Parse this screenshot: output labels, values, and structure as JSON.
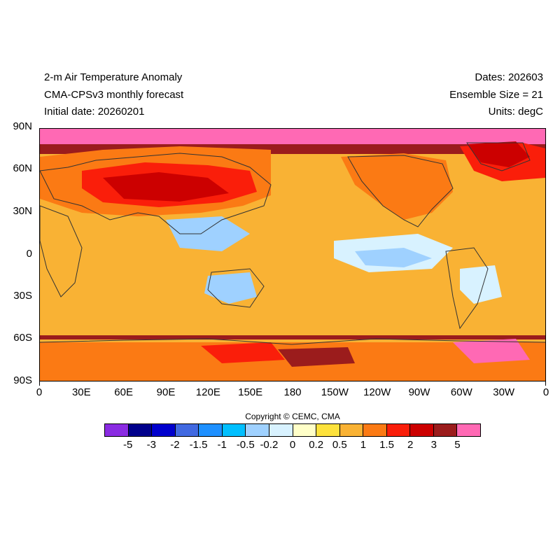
{
  "header": {
    "title": "2-m Air Temperature Anomaly",
    "model": "CMA-CPSv3 monthly forecast",
    "initial_date": "Initial date: 20260201",
    "dates": "Dates: 202603",
    "ensemble": "Ensemble Size = 21",
    "units": "Units: degC"
  },
  "map": {
    "projection": "cylindrical equidistant",
    "lon_range": [
      0,
      360
    ],
    "lat_range": [
      -90,
      90
    ],
    "lat_labels": [
      "90N",
      "60N",
      "30N",
      "0",
      "30S",
      "60S",
      "90S"
    ],
    "lon_labels": [
      "0",
      "30E",
      "60E",
      "90E",
      "120E",
      "150E",
      "180",
      "150W",
      "120W",
      "90W",
      "60W",
      "30W",
      "0"
    ]
  },
  "copyright": "Copyright © CEMC, CMA",
  "colorbar": {
    "labels": [
      "-5",
      "-3",
      "-2",
      "-1.5",
      "-1",
      "-0.5",
      "-0.2",
      "0",
      "0.2",
      "0.5",
      "1",
      "1.5",
      "2",
      "3",
      "5"
    ],
    "colors": [
      "#8a2be2",
      "#00008b",
      "#0000cd",
      "#4169e1",
      "#1e90ff",
      "#00bfff",
      "#9fd1ff",
      "#d8f2ff",
      "#ffffc8",
      "#fde23c",
      "#f9b234",
      "#fb7a14",
      "#fa1e0a",
      "#cc0000",
      "#9b1c1c",
      "#ff69b4"
    ]
  }
}
